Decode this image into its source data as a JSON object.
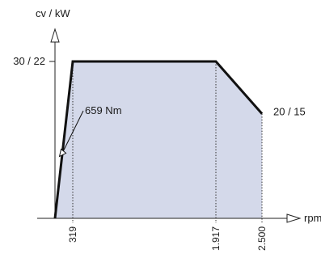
{
  "chart_data": {
    "type": "area",
    "title": "",
    "ylabel": "cv / kW",
    "xlabel": "rpm",
    "x": [
      0,
      319,
      1917,
      2500
    ],
    "y": [
      0,
      30,
      30,
      20
    ],
    "xlim": [
      0,
      2500
    ],
    "ylim": [
      0,
      30
    ],
    "x_ticks": [
      {
        "value": 319,
        "label": "319"
      },
      {
        "value": 1917,
        "label": "1.917"
      },
      {
        "value": 2500,
        "label": "2.500"
      }
    ],
    "y_ticks": [
      {
        "value": 30,
        "label": "30 / 22"
      }
    ],
    "annotations": [
      {
        "text": "659 Nm",
        "points_to": {
          "x": 95,
          "y": 12
        }
      },
      {
        "text": "20 / 15",
        "at": {
          "x": 2500,
          "y": 20
        }
      }
    ],
    "grid": false,
    "colors": {
      "fill": "#d4d9ea",
      "line": "#111111",
      "axis": "#222222"
    }
  }
}
